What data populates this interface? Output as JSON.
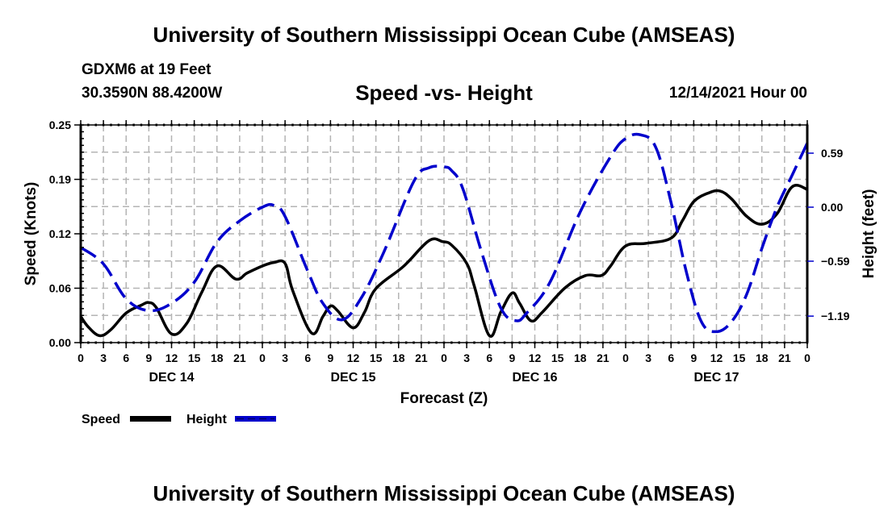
{
  "header": {
    "main_title": "University of Southern Mississippi Ocean Cube (AMSEAS)",
    "station": "GDXM6 at 19 Feet",
    "coordinates": "30.3590N  88.4200W",
    "chart_title": "Speed -vs- Height",
    "date": "12/14/2021 Hour 00"
  },
  "footer": {
    "title": "University of Southern Mississippi Ocean Cube (AMSEAS)"
  },
  "chart_data": {
    "type": "line",
    "title": "Speed -vs- Height",
    "xlabel": "Forecast (Z)",
    "ylabel": "Speed (Knots)",
    "y2label": "Height (feet)",
    "xlim": [
      0,
      96
    ],
    "ylim": [
      0,
      0.25
    ],
    "y2lim": [
      -1.5,
      0.88
    ],
    "grid": true,
    "legend_position": "bottom-left",
    "x_tick_hours": [
      0,
      3,
      6,
      9,
      12,
      15,
      18,
      21,
      24,
      27,
      30,
      33,
      36,
      39,
      42,
      45,
      48,
      51,
      54,
      57,
      60,
      63,
      66,
      69,
      72,
      75,
      78,
      81,
      84,
      87,
      90,
      93,
      96
    ],
    "x_tick_labels": [
      "0",
      "3",
      "6",
      "9",
      "12",
      "15",
      "18",
      "21",
      "0",
      "3",
      "6",
      "9",
      "12",
      "15",
      "18",
      "21",
      "0",
      "3",
      "6",
      "9",
      "12",
      "15",
      "18",
      "21",
      "0",
      "3",
      "6",
      "9",
      "12",
      "15",
      "18",
      "21",
      "0"
    ],
    "day_labels": [
      {
        "hour": 12,
        "label": "DEC 14"
      },
      {
        "hour": 36,
        "label": "DEC 15"
      },
      {
        "hour": 60,
        "label": "DEC 16"
      },
      {
        "hour": 84,
        "label": "DEC 17"
      }
    ],
    "y_ticks": [
      0.0,
      0.06,
      0.12,
      0.19,
      0.25
    ],
    "y_tick_labels": [
      "0.00",
      "0.06",
      "0.12",
      "0.19",
      "0.25"
    ],
    "y_grid_count": 8,
    "y2_ticks": [
      0.59,
      0.0,
      -0.59,
      -1.19
    ],
    "y2_tick_labels": [
      "0.59",
      "0.00",
      "−0.59",
      "−1.19"
    ],
    "series": [
      {
        "name": "Speed",
        "axis": "left",
        "color": "#000000",
        "style": "solid",
        "x": [
          0,
          1,
          2.5,
          4,
          6,
          8,
          9,
          10,
          12,
          14,
          16,
          18,
          20.5,
          22,
          24,
          25.5,
          27,
          28,
          30.5,
          32,
          33,
          34,
          36,
          37.5,
          39,
          42.7,
          46,
          47.8,
          49,
          51,
          52,
          54,
          55.5,
          57,
          58,
          59.5,
          61,
          64,
          66.7,
          68.8,
          70,
          72,
          74.7,
          78,
          79.5,
          81,
          83,
          84.5,
          86,
          88,
          90,
          92,
          94,
          96
        ],
        "values": [
          0.03,
          0.018,
          0.008,
          0.015,
          0.034,
          0.043,
          0.046,
          0.04,
          0.01,
          0.022,
          0.058,
          0.088,
          0.073,
          0.08,
          0.088,
          0.092,
          0.091,
          0.06,
          0.011,
          0.03,
          0.042,
          0.036,
          0.017,
          0.035,
          0.062,
          0.088,
          0.117,
          0.116,
          0.112,
          0.091,
          0.065,
          0.008,
          0.035,
          0.057,
          0.045,
          0.025,
          0.035,
          0.063,
          0.077,
          0.077,
          0.088,
          0.111,
          0.114,
          0.12,
          0.14,
          0.162,
          0.172,
          0.174,
          0.165,
          0.145,
          0.136,
          0.148,
          0.179,
          0.176
        ]
      },
      {
        "name": "Height",
        "axis": "right",
        "color": "#0000cc",
        "style": "dashed",
        "x": [
          0,
          3,
          6,
          9,
          12,
          15,
          18,
          21,
          24,
          25.5,
          27,
          30,
          32,
          34.5,
          37,
          40,
          44,
          46,
          48,
          49,
          50.5,
          53,
          55.5,
          57.5,
          59,
          62,
          66,
          70,
          72,
          74,
          76,
          78,
          80,
          82,
          84,
          86,
          88,
          90,
          92,
          94,
          96
        ],
        "values": [
          -0.44,
          -0.62,
          -1.0,
          -1.13,
          -1.05,
          -0.82,
          -0.38,
          -0.15,
          0.0,
          0.02,
          -0.1,
          -0.7,
          -1.05,
          -1.23,
          -1.0,
          -0.5,
          0.28,
          0.43,
          0.44,
          0.4,
          0.2,
          -0.5,
          -1.1,
          -1.24,
          -1.15,
          -0.82,
          -0.05,
          0.55,
          0.75,
          0.79,
          0.65,
          0.05,
          -0.7,
          -1.25,
          -1.36,
          -1.25,
          -0.95,
          -0.45,
          0.0,
          0.35,
          0.7
        ]
      }
    ]
  },
  "legend": {
    "speed_label": "Speed",
    "height_label": "Height"
  }
}
